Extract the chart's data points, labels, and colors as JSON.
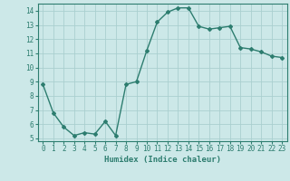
{
  "x": [
    0,
    1,
    2,
    3,
    4,
    5,
    6,
    7,
    8,
    9,
    10,
    11,
    12,
    13,
    14,
    15,
    16,
    17,
    18,
    19,
    20,
    21,
    22,
    23
  ],
  "y": [
    8.8,
    6.8,
    5.8,
    5.2,
    5.4,
    5.3,
    6.2,
    5.2,
    8.8,
    9.0,
    11.2,
    13.2,
    13.9,
    14.2,
    14.2,
    12.9,
    12.7,
    12.8,
    12.9,
    11.4,
    11.3,
    11.1,
    10.8,
    10.7
  ],
  "line_color": "#2d7d6f",
  "marker": "D",
  "marker_size": 2.0,
  "bg_color": "#cce8e8",
  "grid_color": "#aacfcf",
  "xlabel": "Humidex (Indice chaleur)",
  "ylim": [
    4.8,
    14.5
  ],
  "xlim": [
    -0.5,
    23.5
  ],
  "yticks": [
    5,
    6,
    7,
    8,
    9,
    10,
    11,
    12,
    13,
    14
  ],
  "xticks": [
    0,
    1,
    2,
    3,
    4,
    5,
    6,
    7,
    8,
    9,
    10,
    11,
    12,
    13,
    14,
    15,
    16,
    17,
    18,
    19,
    20,
    21,
    22,
    23
  ],
  "tick_fontsize": 5.5,
  "xlabel_fontsize": 6.5,
  "linewidth": 1.0
}
